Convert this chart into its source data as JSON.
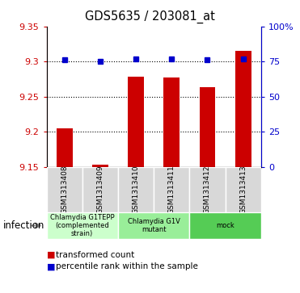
{
  "title": "GDS5635 / 203081_at",
  "samples": [
    "GSM1313408",
    "GSM1313409",
    "GSM1313410",
    "GSM1313411",
    "GSM1313412",
    "GSM1313413"
  ],
  "bar_values": [
    9.205,
    9.153,
    9.278,
    9.277,
    9.263,
    9.315
  ],
  "percentile_values": [
    76,
    75,
    77,
    77,
    76,
    77
  ],
  "ylim_left": [
    9.15,
    9.35
  ],
  "ylim_right": [
    0,
    100
  ],
  "yticks_left": [
    9.15,
    9.2,
    9.25,
    9.3,
    9.35
  ],
  "yticks_right": [
    0,
    25,
    50,
    75,
    100
  ],
  "bar_color": "#cc0000",
  "dot_color": "#0000cc",
  "groups": [
    {
      "label": "Chlamydia G1TEPP\n(complemented\nstrain)",
      "start": 0,
      "end": 2,
      "color": "#ccffcc"
    },
    {
      "label": "Chlamydia G1V\nmutant",
      "start": 2,
      "end": 4,
      "color": "#99ee99"
    },
    {
      "label": "mock",
      "start": 4,
      "end": 6,
      "color": "#55cc55"
    }
  ],
  "factor_label": "infection",
  "legend_bar_label": "transformed count",
  "legend_dot_label": "percentile rank within the sample",
  "sample_bg_color": "#d8d8d8",
  "plot_bg": "#ffffff"
}
